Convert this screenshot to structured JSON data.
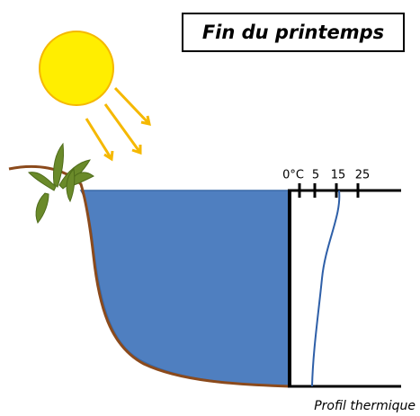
{
  "title": "Fin du printemps",
  "scale_labels": [
    "0°C",
    "5",
    "15",
    "25"
  ],
  "caption": "Profil thermique"
}
